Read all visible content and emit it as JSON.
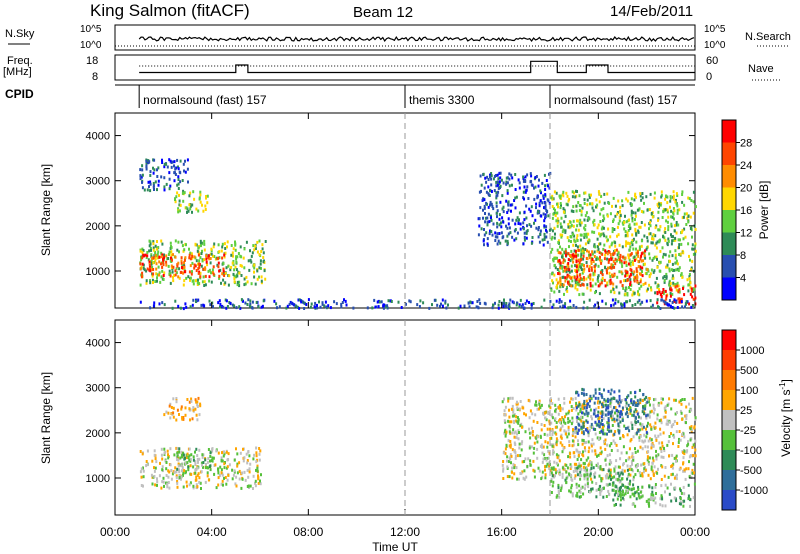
{
  "header": {
    "station": "King Salmon (fitACF)",
    "beam": "Beam 12",
    "date": "14/Feb/2011"
  },
  "summary": {
    "nsky_label": "N.Sky",
    "nsky_ticks": [
      "10^5",
      "10^0"
    ],
    "nsky_right_ticks": [
      "10^5",
      "10^0"
    ],
    "nsearch_label": "N.Search",
    "freq_label": "Freq.",
    "freq_unit": "[MHz]",
    "freq_ticks": [
      "18",
      "8"
    ],
    "nave_ticks": [
      "60",
      "0"
    ],
    "nave_label": "Nave",
    "cpid_label": "CPID"
  },
  "cpid": [
    {
      "name": "normalsound (fast) 157",
      "start_hour": 1.0
    },
    {
      "name": "themis 3300",
      "start_hour": 12.0
    },
    {
      "name": "normalsound (fast) 157",
      "start_hour": 18.0
    }
  ],
  "axes": {
    "xlabel": "Time UT",
    "ylabel": "Slant Range [km]",
    "x_ticks": [
      "00:00",
      "04:00",
      "08:00",
      "12:00",
      "16:00",
      "20:00",
      "00:00"
    ],
    "x_tick_hours": [
      0,
      4,
      8,
      12,
      16,
      20,
      24
    ],
    "y_ticks": [
      "1000",
      "2000",
      "3000",
      "4000"
    ],
    "y_tick_values": [
      1000,
      2000,
      3000,
      4000
    ],
    "x_range": [
      0,
      24
    ],
    "y_range": [
      180,
      4500
    ]
  },
  "power": {
    "colorbar_label": "Power [dB]",
    "colorbar_ticks": [
      "28",
      "24",
      "20",
      "16",
      "12",
      "8",
      "4"
    ],
    "colors": [
      "#0000ff",
      "#284fb0",
      "#2e8b57",
      "#5fcf3f",
      "#ffd700",
      "#ff8c00",
      "#ff4500",
      "#ff0000"
    ]
  },
  "velocity": {
    "colorbar_label": "Velocity [m s",
    "colorbar_label_sup": "-1",
    "colorbar_label_end": "]",
    "colorbar_ticks": [
      "1000",
      "500",
      "100",
      "25",
      "-25",
      "-100",
      "-500",
      "-1000"
    ],
    "colors": [
      "#2a4bc8",
      "#2f6e9a",
      "#2e8b57",
      "#55c03a",
      "#c0c0c0",
      "#ffa500",
      "#ff7a00",
      "#ff3c00",
      "#ff0000"
    ]
  },
  "chart_data": [
    {
      "type": "heatmap",
      "title": "Power",
      "xlabel": "Time UT",
      "ylabel": "Slant Range [km]",
      "xlim": [
        0,
        24
      ],
      "ylim": [
        180,
        4500
      ],
      "colorbar": "Power [dB]",
      "regions": [
        {
          "t0": 1.0,
          "t1": 6.2,
          "r0": 700,
          "r1": 1700,
          "level": 3
        },
        {
          "t0": 1.0,
          "t1": 4.5,
          "r0": 900,
          "r1": 1400,
          "level": 6
        },
        {
          "t0": 2.4,
          "t1": 3.8,
          "r0": 2300,
          "r1": 2800,
          "level": 3
        },
        {
          "t0": 1.0,
          "t1": 3.0,
          "r0": 2800,
          "r1": 3500,
          "level": 1
        },
        {
          "t0": 18.0,
          "t1": 24.0,
          "r0": 500,
          "r1": 2800,
          "level": 3
        },
        {
          "t0": 18.2,
          "t1": 22.0,
          "r0": 700,
          "r1": 1500,
          "level": 6
        },
        {
          "t0": 22.3,
          "t1": 24.0,
          "r0": 300,
          "r1": 700,
          "level": 7
        },
        {
          "t0": 15.0,
          "t1": 18.0,
          "r0": 1600,
          "r1": 3200,
          "level": 1
        },
        {
          "t0": 1.0,
          "t1": 24.0,
          "r0": 200,
          "r1": 400,
          "level": 1
        }
      ]
    },
    {
      "type": "heatmap",
      "title": "Velocity",
      "xlabel": "Time UT",
      "ylabel": "Slant Range [km]",
      "xlim": [
        0,
        24
      ],
      "ylim": [
        180,
        4500
      ],
      "colorbar": "Velocity [m s-1]",
      "regions": [
        {
          "t0": 1.0,
          "t1": 6.0,
          "r0": 800,
          "r1": 1700,
          "level": 4
        },
        {
          "t0": 2.5,
          "t1": 4.0,
          "r0": 1200,
          "r1": 1700,
          "level": 3
        },
        {
          "t0": 2.0,
          "t1": 3.5,
          "r0": 2300,
          "r1": 2800,
          "level": 5
        },
        {
          "t0": 16.0,
          "t1": 24.0,
          "r0": 1000,
          "r1": 2800,
          "level": 4
        },
        {
          "t0": 18.0,
          "t1": 21.5,
          "r0": 600,
          "r1": 1300,
          "level": 3
        },
        {
          "t0": 20.5,
          "t1": 24.0,
          "r0": 400,
          "r1": 900,
          "level": 3
        },
        {
          "t0": 19.0,
          "t1": 22.0,
          "r0": 2000,
          "r1": 3000,
          "level": 1
        }
      ]
    }
  ]
}
